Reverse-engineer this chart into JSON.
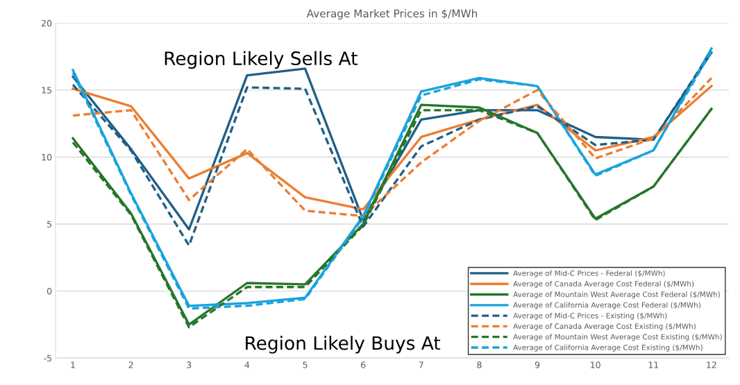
{
  "chart_data": {
    "type": "line",
    "title": "Average Market Prices in $/MWh",
    "categories": [
      "1",
      "2",
      "3",
      "4",
      "5",
      "6",
      "7",
      "8",
      "9",
      "10",
      "11",
      "12"
    ],
    "series": [
      {
        "name": "Average of Mid-C Prices - Federal ($/MWh)",
        "color": "#1f5f86",
        "line_style": "solid",
        "values": [
          16.0,
          10.6,
          4.6,
          16.1,
          16.6,
          5.3,
          12.8,
          13.5,
          13.5,
          11.5,
          11.3,
          17.8
        ]
      },
      {
        "name": "Average of Canada Average Cost Federal ($/MWh)",
        "color": "#ed7d31",
        "line_style": "solid",
        "values": [
          15.1,
          13.8,
          8.4,
          10.3,
          7.0,
          6.1,
          11.5,
          12.8,
          13.9,
          10.5,
          11.5,
          15.3
        ]
      },
      {
        "name": "Average of Mountain West Average Cost Federal ($/MWh)",
        "color": "#27752a",
        "line_style": "solid",
        "values": [
          11.4,
          5.8,
          -2.5,
          0.6,
          0.5,
          5.0,
          13.9,
          13.7,
          11.8,
          5.4,
          7.8,
          13.6
        ]
      },
      {
        "name": "Average of California Average Cost Federal ($/MWh)",
        "color": "#1aa3dc",
        "line_style": "solid",
        "values": [
          16.5,
          7.3,
          -1.1,
          -0.9,
          -0.5,
          5.6,
          14.9,
          15.9,
          15.3,
          8.7,
          10.5,
          18.1
        ]
      },
      {
        "name": "Average of Mid-C Prices - Existing ($/MWh)",
        "color": "#1f5f86",
        "line_style": "dashed",
        "values": [
          15.4,
          10.5,
          3.4,
          15.2,
          15.1,
          4.8,
          10.8,
          12.8,
          13.8,
          10.9,
          11.3,
          17.9
        ]
      },
      {
        "name": "Average of Canada Average Cost Existing ($/MWh)",
        "color": "#ed7d31",
        "line_style": "dashed",
        "values": [
          13.1,
          13.5,
          6.8,
          10.6,
          6.0,
          5.6,
          9.6,
          12.7,
          15.0,
          9.9,
          11.4,
          15.9
        ]
      },
      {
        "name": "Average of Mountain West Average Cost Existing ($/MWh)",
        "color": "#27752a",
        "line_style": "dashed",
        "values": [
          11.1,
          5.7,
          -2.7,
          0.3,
          0.3,
          4.9,
          13.5,
          13.5,
          11.8,
          5.3,
          7.8,
          13.6
        ]
      },
      {
        "name": "Average of California Average Cost Existing ($/MWh)",
        "color": "#1aa3dc",
        "line_style": "dashed",
        "values": [
          16.3,
          7.2,
          -1.3,
          -1.1,
          -0.6,
          5.5,
          14.6,
          15.8,
          15.3,
          8.6,
          10.5,
          17.9
        ]
      }
    ],
    "ylim": [
      -5,
      20
    ],
    "yticks": [
      -5,
      0,
      5,
      10,
      15,
      20
    ],
    "grid": "y",
    "legend": "bottom right",
    "marker": "none",
    "annotations": [
      "Region Likely Sells At",
      "Region Likely Buys At"
    ]
  }
}
